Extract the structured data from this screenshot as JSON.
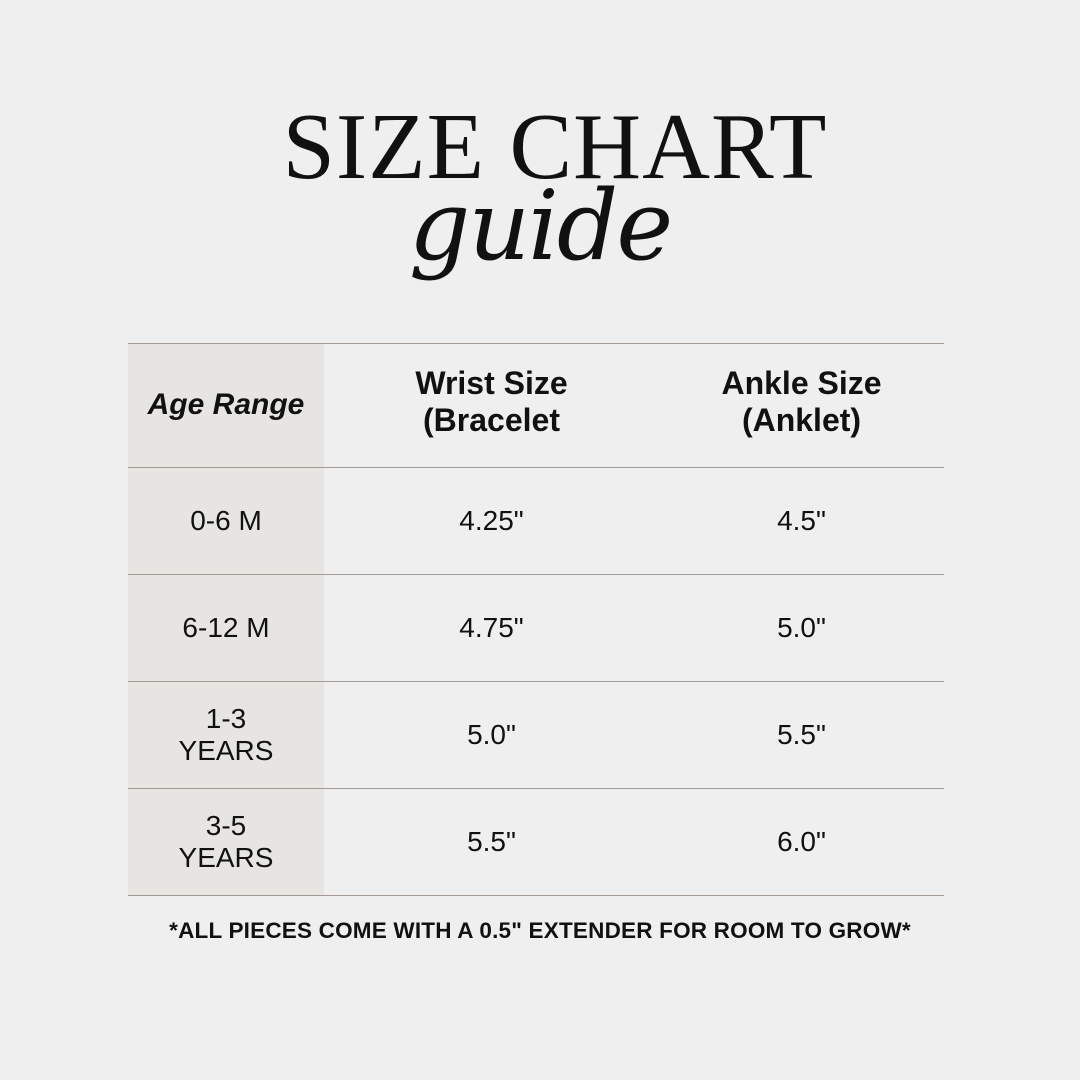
{
  "header": {
    "title": "SIZE CHART",
    "subtitle": "guide"
  },
  "table": {
    "columns": [
      "Age Range",
      "Wrist Size (Bracelet",
      "Ankle Size (Anklet)"
    ],
    "rows": [
      {
        "age": "0-6 M",
        "wrist": "4.25\"",
        "ankle": "4.5\""
      },
      {
        "age": "6-12 M",
        "wrist": "4.75\"",
        "ankle": "5.0\""
      },
      {
        "age": "1-3 YEARS",
        "wrist": "5.0\"",
        "ankle": "5.5\""
      },
      {
        "age": "3-5 YEARS",
        "wrist": "5.5\"",
        "ankle": "6.0\""
      }
    ]
  },
  "footer": {
    "note": "*ALL PIECES COME WITH A 0.5\" EXTENDER FOR ROOM TO GROW*"
  },
  "colors": {
    "background": "#efefef",
    "first_column": "#e7e5e2",
    "rule": "#a39a93",
    "text": "#111111"
  }
}
